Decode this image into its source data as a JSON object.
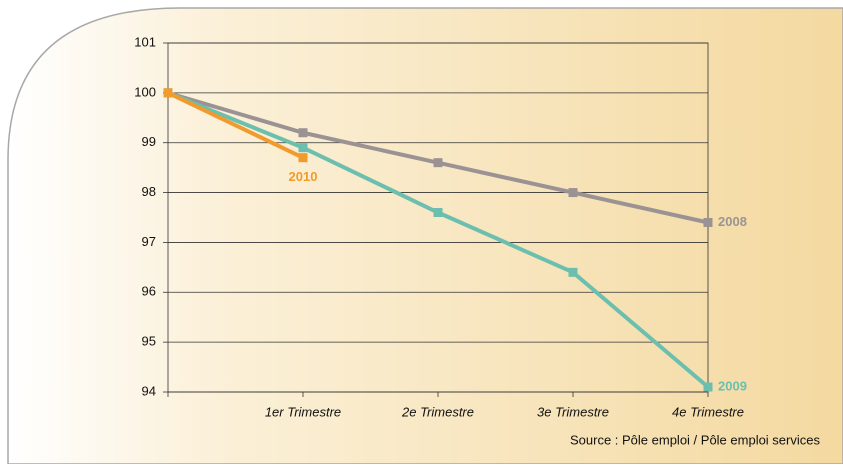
{
  "chart_data": {
    "type": "line",
    "categories": [
      null,
      "1er Trimestre",
      "2e Trimestre",
      "3e Trimestre",
      "4e Trimestre"
    ],
    "series": [
      {
        "name": "2008",
        "color": "#9b9393",
        "values": [
          100,
          99.2,
          98.6,
          98.0,
          97.4
        ]
      },
      {
        "name": "2009",
        "color": "#6cbfae",
        "values": [
          100,
          98.9,
          97.6,
          96.4,
          94.1
        ]
      },
      {
        "name": "2010",
        "color": "#f19b2c",
        "values": [
          100,
          98.7,
          null,
          null,
          null
        ]
      }
    ],
    "ylim": [
      94,
      101
    ],
    "yticks": [
      94,
      95,
      96,
      97,
      98,
      99,
      100,
      101
    ],
    "grid": true,
    "source": "Source : Pôle emploi / Pôle emploi services"
  }
}
